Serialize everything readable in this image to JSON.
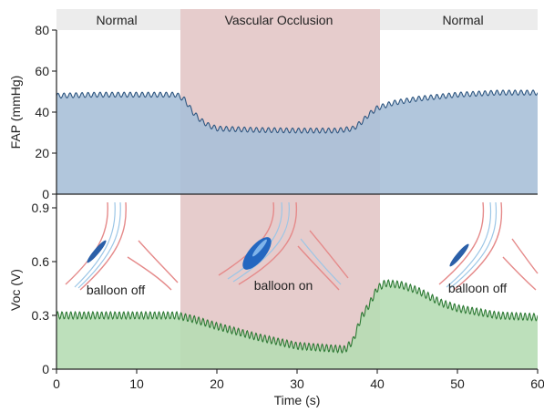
{
  "chart_data": [
    {
      "type": "area",
      "ylabel": "FAP (mmHg)",
      "xlim": [
        0,
        60
      ],
      "ylim": [
        0,
        80
      ],
      "yticks": [
        0,
        20,
        40,
        60,
        80
      ],
      "fill_color": "#a9c0d8",
      "line_color": "#2e5680",
      "regions": [
        {
          "label": "Normal",
          "x_start": 0,
          "x_end": 15.5
        },
        {
          "label": "Vascular Occlusion",
          "x_start": 15.5,
          "x_end": 40.5
        },
        {
          "label": "Normal",
          "x_start": 40.5,
          "x_end": 60
        }
      ],
      "occlusion_color": "#e6cccc",
      "series": [
        {
          "x": [
            0,
            5,
            10,
            15,
            16,
            17,
            18,
            19,
            20,
            25,
            30,
            35,
            37,
            38,
            39,
            40,
            42,
            45,
            50,
            55,
            60
          ],
          "y": [
            48,
            48.5,
            48.5,
            48.5,
            46,
            40,
            36,
            33.5,
            32,
            31.3,
            31,
            31,
            32,
            35,
            39,
            42,
            44.5,
            46.5,
            48.5,
            49.5,
            49.5
          ],
          "ripple_amplitude": 1.2,
          "ripple_period": 0.75
        }
      ]
    },
    {
      "type": "area",
      "xlabel": "Time (s)",
      "ylabel": "Voc (V)",
      "xlim": [
        0,
        60
      ],
      "ylim": [
        0,
        0.9
      ],
      "xticks": [
        0,
        10,
        20,
        30,
        40,
        50,
        60
      ],
      "yticks": [
        0,
        0.3,
        0.6,
        0.9
      ],
      "fill_color": "#b6ddb4",
      "line_color": "#2e7a35",
      "series": [
        {
          "x": [
            0,
            10,
            15,
            17,
            20,
            25,
            30,
            36,
            37,
            38,
            39,
            40,
            41,
            43,
            45,
            48,
            50,
            55,
            60
          ],
          "y": [
            0.3,
            0.3,
            0.3,
            0.28,
            0.24,
            0.18,
            0.13,
            0.11,
            0.16,
            0.29,
            0.36,
            0.45,
            0.48,
            0.47,
            0.44,
            0.37,
            0.34,
            0.3,
            0.29
          ],
          "ripple_amplitude": 0.02,
          "ripple_period": 0.55
        }
      ],
      "annotations": [
        {
          "text": "balloon off",
          "x": 7.5
        },
        {
          "text": "balloon on",
          "x": 28
        },
        {
          "text": "balloon off",
          "x": 52.5
        }
      ]
    }
  ]
}
